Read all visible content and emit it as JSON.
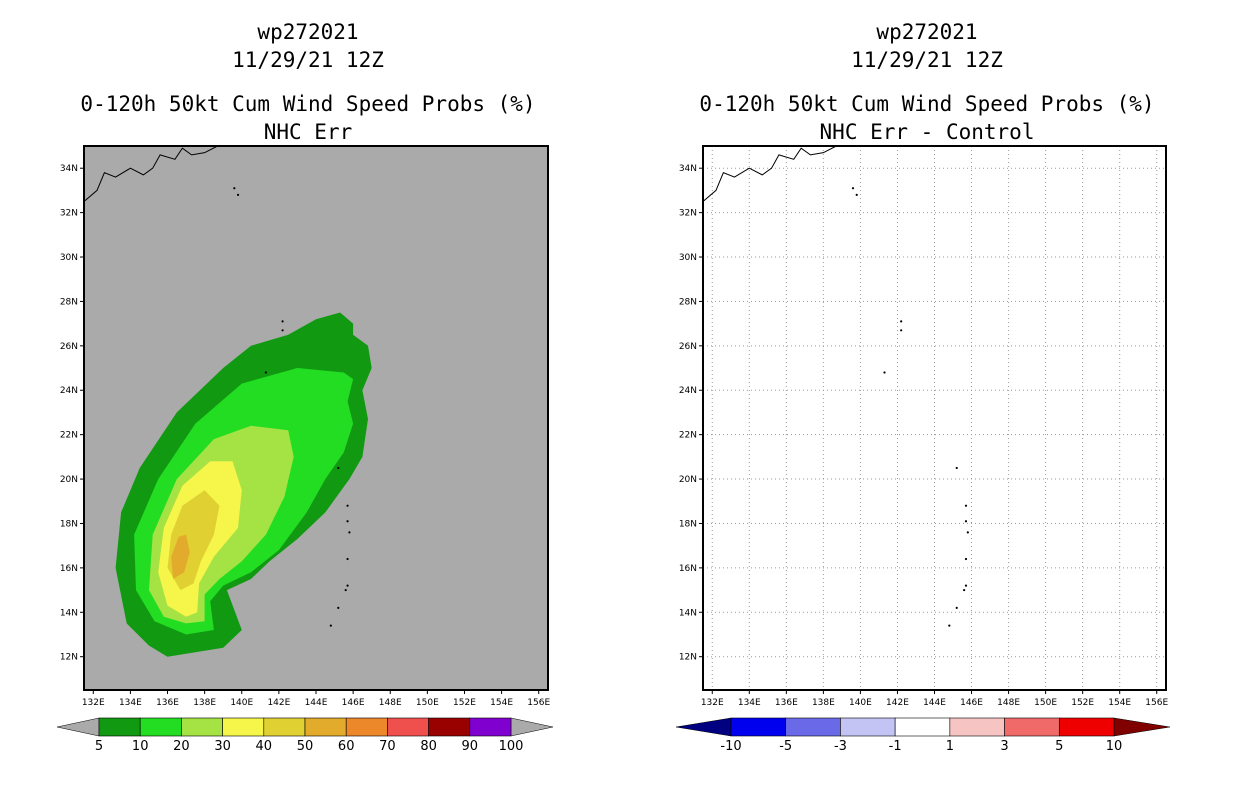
{
  "chart_data": [
    {
      "type": "heatmap",
      "id": "left",
      "title_lines": [
        "wp272021",
        "11/29/21 12Z",
        "0-120h 50kt Cum Wind Speed Probs (%)",
        "NHC Err"
      ],
      "xlim": [
        131.5,
        156.5
      ],
      "ylim": [
        10.5,
        35
      ],
      "x_ticks": [
        "132E",
        "134E",
        "136E",
        "138E",
        "140E",
        "142E",
        "144E",
        "146E",
        "148E",
        "150E",
        "152E",
        "154E",
        "156E"
      ],
      "y_ticks": [
        "12N",
        "14N",
        "16N",
        "18N",
        "20N",
        "22N",
        "24N",
        "26N",
        "28N",
        "30N",
        "32N",
        "34N"
      ],
      "grid": false,
      "background": "#aaaaaa",
      "colorbar": {
        "labels": [
          "5",
          "10",
          "20",
          "30",
          "40",
          "50",
          "60",
          "70",
          "80",
          "90",
          "100"
        ],
        "colors": [
          "#119911",
          "#22dd22",
          "#a5e344",
          "#f5f54a",
          "#e0d032",
          "#e3ab2c",
          "#ec872a",
          "#f0504d",
          "#990000",
          "#8000d0"
        ],
        "end_color": "#aaaaaa"
      },
      "contours": [
        {
          "level": 5,
          "color": "#119911",
          "points": [
            [
              136.0,
              12.0
            ],
            [
              139.0,
              12.4
            ],
            [
              140.0,
              13.2
            ],
            [
              139.2,
              15.0
            ],
            [
              140.5,
              15.5
            ],
            [
              141.5,
              16.3
            ],
            [
              143.0,
              17.3
            ],
            [
              144.5,
              18.5
            ],
            [
              145.8,
              20.0
            ],
            [
              146.5,
              21.0
            ],
            [
              146.8,
              22.7
            ],
            [
              146.5,
              24.0
            ],
            [
              147.0,
              25.0
            ],
            [
              146.8,
              26.0
            ],
            [
              146.0,
              26.5
            ],
            [
              146.0,
              27.0
            ],
            [
              145.3,
              27.5
            ],
            [
              144.0,
              27.2
            ],
            [
              142.5,
              26.5
            ],
            [
              140.5,
              26.0
            ],
            [
              139.0,
              25.0
            ],
            [
              136.5,
              23.0
            ],
            [
              134.5,
              20.5
            ],
            [
              133.5,
              18.5
            ],
            [
              133.2,
              16.0
            ],
            [
              133.8,
              13.5
            ],
            [
              135.0,
              12.5
            ]
          ]
        },
        {
          "level": 10,
          "color": "#22dd22",
          "points": [
            [
              137.0,
              13.0
            ],
            [
              138.5,
              13.2
            ],
            [
              138.3,
              14.5
            ],
            [
              139.0,
              15.2
            ],
            [
              140.5,
              15.8
            ],
            [
              142.0,
              16.8
            ],
            [
              143.5,
              18.5
            ],
            [
              144.5,
              20.0
            ],
            [
              145.5,
              21.2
            ],
            [
              146.0,
              22.5
            ],
            [
              145.7,
              23.5
            ],
            [
              146.0,
              24.5
            ],
            [
              145.5,
              24.8
            ],
            [
              143.0,
              25.0
            ],
            [
              140.0,
              24.3
            ],
            [
              137.5,
              22.5
            ],
            [
              135.5,
              20.0
            ],
            [
              134.2,
              17.5
            ],
            [
              134.3,
              15.0
            ],
            [
              135.3,
              13.6
            ]
          ]
        },
        {
          "level": 20,
          "color": "#a5e344",
          "points": [
            [
              137.0,
              13.5
            ],
            [
              138.0,
              13.6
            ],
            [
              138.0,
              14.8
            ],
            [
              138.8,
              15.5
            ],
            [
              140.0,
              16.3
            ],
            [
              141.3,
              17.5
            ],
            [
              142.3,
              19.2
            ],
            [
              142.8,
              21.0
            ],
            [
              142.5,
              22.2
            ],
            [
              140.5,
              22.4
            ],
            [
              138.5,
              21.8
            ],
            [
              136.5,
              20.0
            ],
            [
              135.2,
              17.5
            ],
            [
              135.0,
              15.0
            ],
            [
              135.8,
              13.8
            ]
          ]
        },
        {
          "level": 30,
          "color": "#f5f54a",
          "points": [
            [
              137.0,
              13.8
            ],
            [
              137.6,
              14.0
            ],
            [
              137.7,
              15.3
            ],
            [
              138.5,
              16.5
            ],
            [
              139.8,
              17.8
            ],
            [
              140.0,
              19.5
            ],
            [
              139.5,
              20.8
            ],
            [
              138.3,
              20.8
            ],
            [
              136.8,
              19.7
            ],
            [
              135.8,
              17.8
            ],
            [
              135.5,
              15.8
            ],
            [
              136.0,
              14.3
            ]
          ]
        },
        {
          "level": 40,
          "color": "#e0d032",
          "points": [
            [
              136.7,
              15.0
            ],
            [
              137.4,
              15.3
            ],
            [
              137.8,
              16.3
            ],
            [
              138.5,
              17.5
            ],
            [
              138.8,
              18.8
            ],
            [
              138.0,
              19.5
            ],
            [
              136.8,
              18.8
            ],
            [
              136.2,
              17.5
            ],
            [
              136.0,
              16.0
            ]
          ]
        },
        {
          "level": 50,
          "color": "#e3ab2c",
          "points": [
            [
              136.3,
              15.5
            ],
            [
              136.9,
              15.8
            ],
            [
              137.2,
              16.7
            ],
            [
              137.0,
              17.5
            ],
            [
              136.6,
              17.4
            ],
            [
              136.2,
              16.5
            ]
          ]
        }
      ]
    },
    {
      "type": "heatmap",
      "id": "right",
      "title_lines": [
        "wp272021",
        "11/29/21 12Z",
        "0-120h 50kt Cum Wind Speed Probs (%)",
        "NHC Err - Control"
      ],
      "xlim": [
        131.5,
        156.5
      ],
      "ylim": [
        10.5,
        35
      ],
      "x_ticks": [
        "132E",
        "134E",
        "136E",
        "138E",
        "140E",
        "142E",
        "144E",
        "146E",
        "148E",
        "150E",
        "152E",
        "154E",
        "156E"
      ],
      "y_ticks": [
        "12N",
        "14N",
        "16N",
        "18N",
        "20N",
        "22N",
        "24N",
        "26N",
        "28N",
        "30N",
        "32N",
        "34N"
      ],
      "grid": true,
      "background": "#ffffff",
      "colorbar": {
        "labels": [
          "-10",
          "-5",
          "-3",
          "-1",
          "1",
          "3",
          "5",
          "10"
        ],
        "colors": [
          "#0000ee",
          "#6a6ae8",
          "#c4c4f4",
          "#ffffff",
          "#f7c4c4",
          "#f06a6a",
          "#ee0000"
        ],
        "left_end_color": "#000080",
        "right_end_color": "#800000"
      },
      "contours": []
    }
  ]
}
